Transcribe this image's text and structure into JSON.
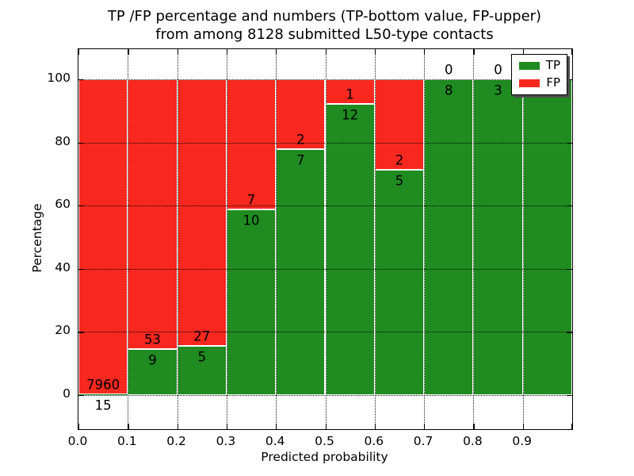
{
  "chart_data": {
    "type": "bar",
    "stacked": true,
    "title_line1": "TP /FP percentage and numbers (TP-bottom value, FP-upper)",
    "title_line2": "from among 8128 submitted L50-type contacts",
    "xlabel": "Predicted probability",
    "ylabel": "Percentage",
    "xlim": [
      0.0,
      1.0
    ],
    "ylim": [
      -10,
      110
    ],
    "bin_width": 0.1,
    "total_contacts": 8128,
    "grid": "dotted",
    "x_tick_labels": [
      "0.0",
      "0.1",
      "0.2",
      "0.3",
      "0.4",
      "0.5",
      "0.6",
      "0.7",
      "0.8",
      "0.9"
    ],
    "y_tick_values": [
      0,
      20,
      40,
      60,
      80,
      100
    ],
    "categories": [
      "0.0-0.1",
      "0.1-0.2",
      "0.2-0.3",
      "0.3-0.4",
      "0.4-0.5",
      "0.5-0.6",
      "0.6-0.7",
      "0.7-0.8",
      "0.8-0.9",
      "0.9-1.0"
    ],
    "series": [
      {
        "name": "TP",
        "color": "#1f8b20",
        "counts": [
          15,
          9,
          5,
          10,
          7,
          12,
          5,
          8,
          3,
          2
        ]
      },
      {
        "name": "FP",
        "color": "#f8281e",
        "counts": [
          7960,
          53,
          27,
          7,
          2,
          1,
          2,
          0,
          0,
          0
        ]
      }
    ],
    "annotation_note": "TP-bottom value, FP-upper",
    "legend": {
      "location": "upper right",
      "entries": [
        {
          "label": "TP",
          "color": "#1f8b20"
        },
        {
          "label": "FP",
          "color": "#f8281e"
        }
      ]
    }
  }
}
